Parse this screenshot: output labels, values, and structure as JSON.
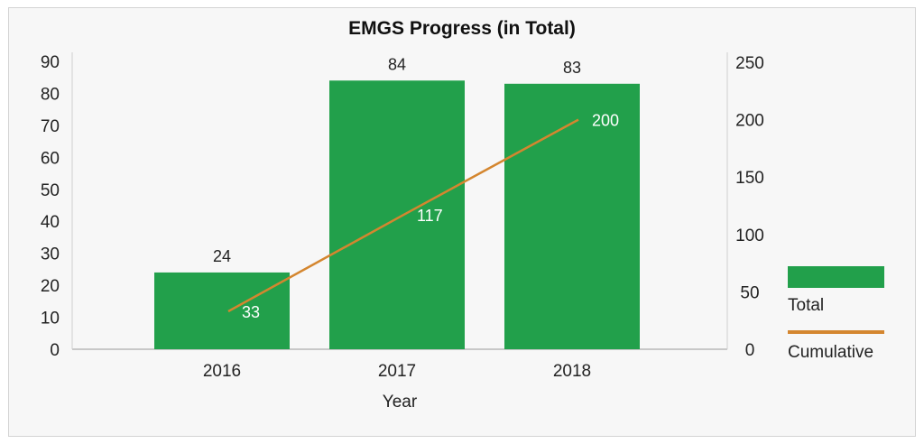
{
  "chart_data": {
    "type": "bar",
    "title": "EMGS Progress (in Total)",
    "xlabel": "Year",
    "ylabel": "",
    "categories": [
      "2016",
      "2017",
      "2018"
    ],
    "series": [
      {
        "name": "Total",
        "type": "bar",
        "axis": "left",
        "values": [
          24,
          84,
          83
        ],
        "color": "#22a04b"
      },
      {
        "name": "Cumulative",
        "type": "line",
        "axis": "right",
        "values": [
          33,
          117,
          200
        ],
        "color": "#d4862f"
      }
    ],
    "ylim": [
      0,
      90
    ],
    "y_ticks": [
      0,
      10,
      20,
      30,
      40,
      50,
      60,
      70,
      80,
      90
    ],
    "y2lim": [
      0,
      250
    ],
    "y2_ticks": [
      0,
      50,
      100,
      150,
      200,
      250
    ],
    "legend_position": "right",
    "grid": false
  }
}
